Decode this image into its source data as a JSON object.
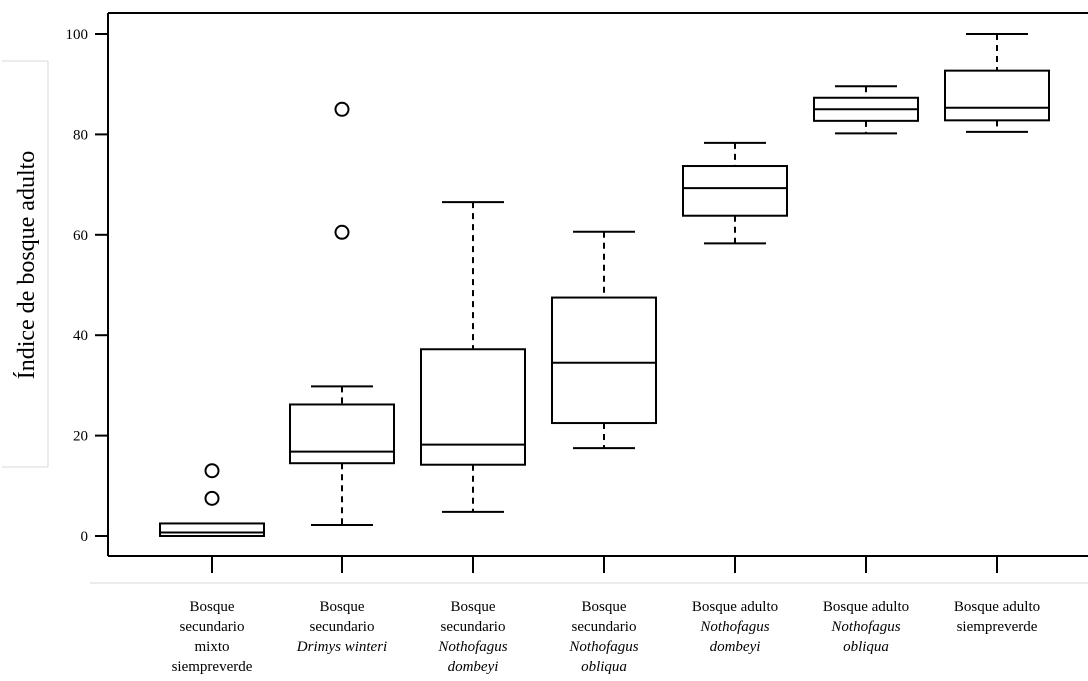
{
  "chart_data": {
    "type": "boxplot",
    "ylabel": "Índice de bosque adulto",
    "ylim": [
      -4,
      104
    ],
    "yticks": [
      0,
      20,
      40,
      60,
      80,
      100
    ],
    "grid": false,
    "categories": [
      {
        "lines": [
          {
            "text": "Bosque",
            "italic": false
          },
          {
            "text": "secundario",
            "italic": false
          },
          {
            "text": "mixto",
            "italic": false
          },
          {
            "text": "siempreverde",
            "italic": false
          }
        ]
      },
      {
        "lines": [
          {
            "text": "Bosque",
            "italic": false
          },
          {
            "text": "secundario",
            "italic": false
          },
          {
            "text": "Drimys winteri",
            "italic": true
          }
        ]
      },
      {
        "lines": [
          {
            "text": "Bosque",
            "italic": false
          },
          {
            "text": "secundario",
            "italic": false
          },
          {
            "text": "Nothofagus",
            "italic": true
          },
          {
            "text": "dombeyi",
            "italic": true
          }
        ]
      },
      {
        "lines": [
          {
            "text": "Bosque",
            "italic": false
          },
          {
            "text": "secundario",
            "italic": false
          },
          {
            "text": "Nothofagus",
            "italic": true
          },
          {
            "text": "obliqua",
            "italic": true
          }
        ]
      },
      {
        "lines": [
          {
            "text": "Bosque adulto",
            "italic": false
          },
          {
            "text": "Nothofagus",
            "italic": true
          },
          {
            "text": "dombeyi",
            "italic": true
          }
        ]
      },
      {
        "lines": [
          {
            "text": "Bosque adulto",
            "italic": false
          },
          {
            "text": "Nothofagus",
            "italic": true
          },
          {
            "text": "obliqua",
            "italic": true
          }
        ]
      },
      {
        "lines": [
          {
            "text": "Bosque adulto",
            "italic": false
          },
          {
            "text": "siempreverde",
            "italic": false
          }
        ]
      }
    ],
    "boxes": [
      {
        "whisker_low": 0,
        "q1": 0,
        "median": 0.7,
        "q3": 2.5,
        "whisker_high": 2.5,
        "outliers": [
          7.5,
          13
        ]
      },
      {
        "whisker_low": 2.2,
        "q1": 14.5,
        "median": 16.8,
        "q3": 26.2,
        "whisker_high": 29.8,
        "outliers": [
          60.5,
          85
        ]
      },
      {
        "whisker_low": 4.8,
        "q1": 14.2,
        "median": 18.2,
        "q3": 37.2,
        "whisker_high": 66.5,
        "outliers": []
      },
      {
        "whisker_low": 17.5,
        "q1": 22.5,
        "median": 34.5,
        "q3": 47.5,
        "whisker_high": 60.6,
        "outliers": []
      },
      {
        "whisker_low": 58.3,
        "q1": 63.8,
        "median": 69.3,
        "q3": 73.7,
        "whisker_high": 78.3,
        "outliers": []
      },
      {
        "whisker_low": 80.2,
        "q1": 82.7,
        "median": 85.0,
        "q3": 87.3,
        "whisker_high": 89.6,
        "outliers": []
      },
      {
        "whisker_low": 80.5,
        "q1": 82.8,
        "median": 85.3,
        "q3": 92.7,
        "whisker_high": 100,
        "outliers": []
      }
    ]
  }
}
